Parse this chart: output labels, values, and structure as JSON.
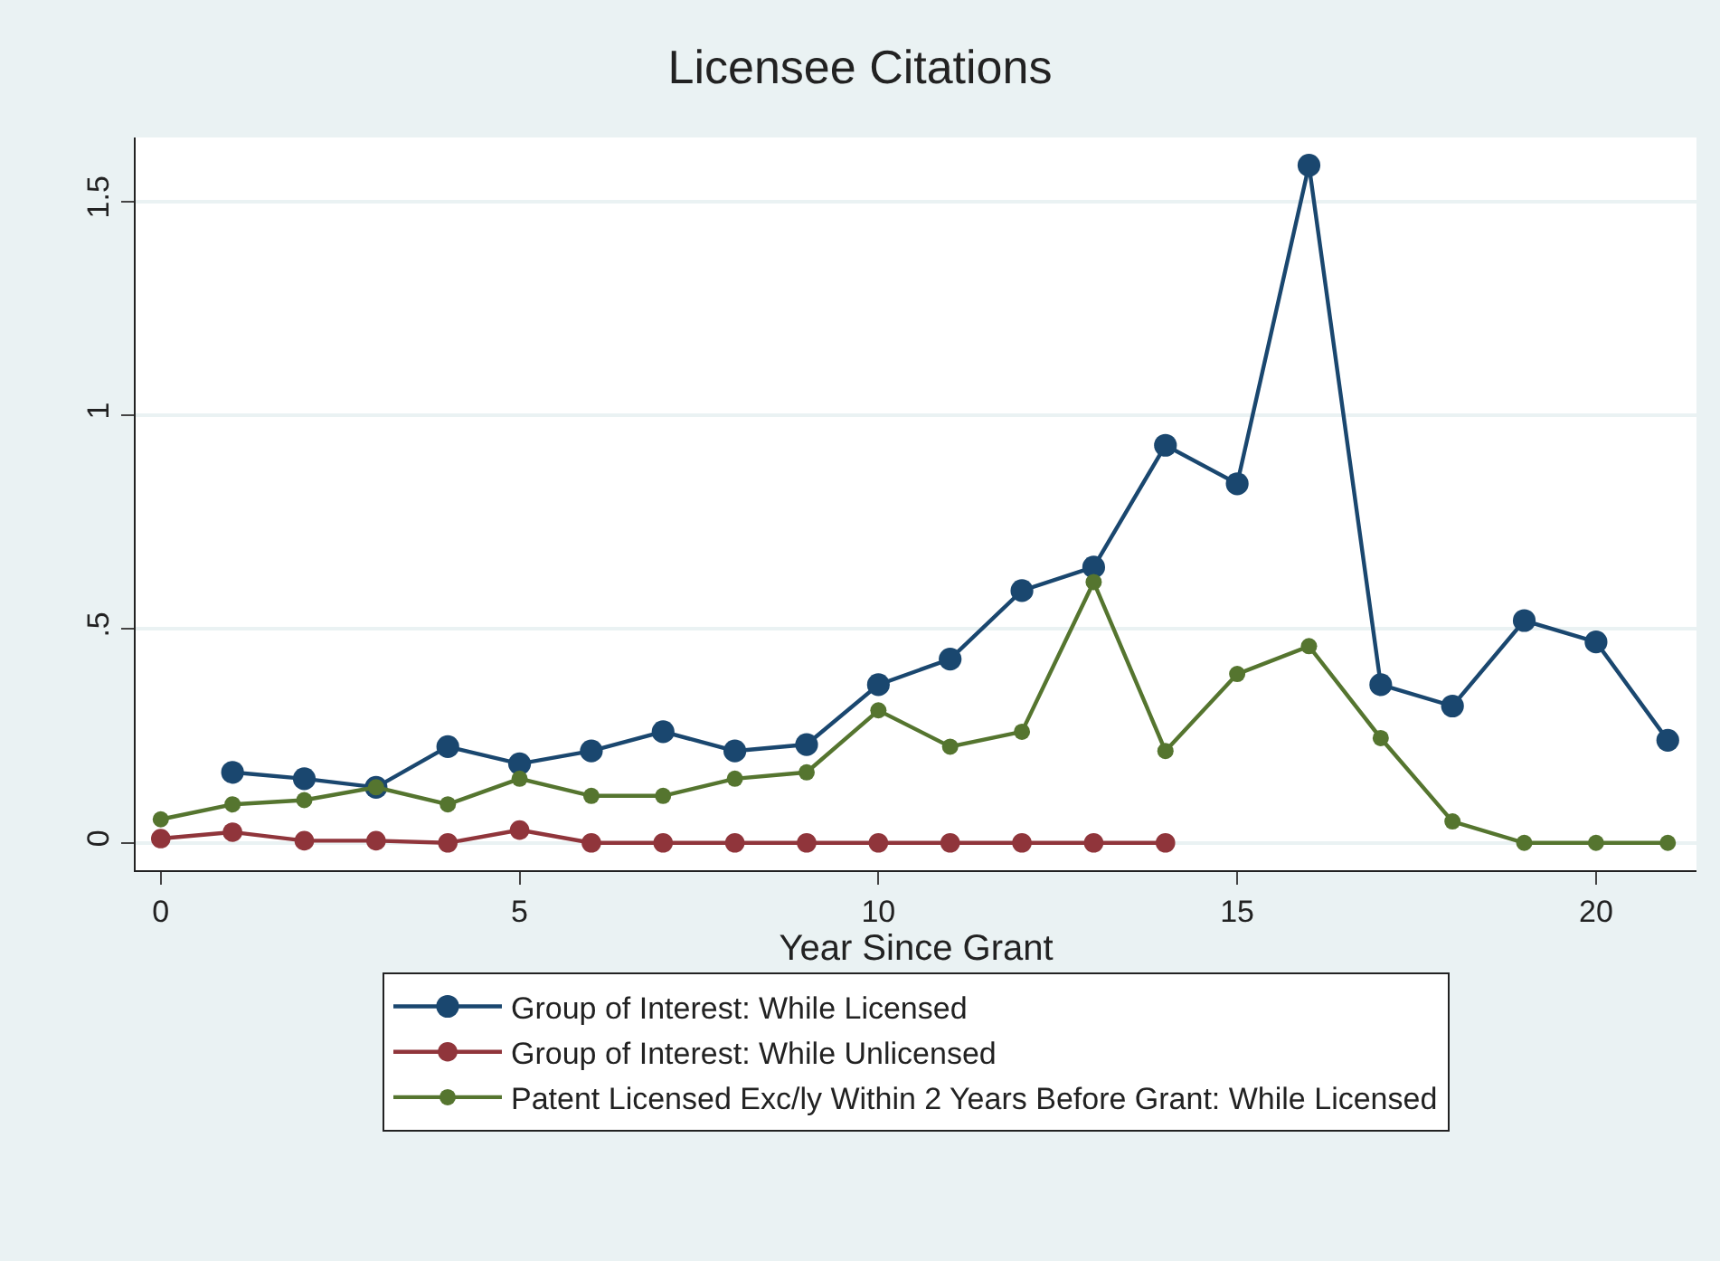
{
  "chart_data": {
    "type": "line",
    "title": "Licensee Citations",
    "xlabel": "Year Since Grant",
    "series": [
      {
        "name": "Group of Interest: While Licensed",
        "color": "#1a476f",
        "x": [
          1,
          2,
          3,
          4,
          5,
          6,
          7,
          8,
          9,
          10,
          11,
          12,
          13,
          14,
          15,
          16,
          17,
          18,
          19,
          20,
          21
        ],
        "values": [
          0.165,
          0.15,
          0.13,
          0.225,
          0.185,
          0.215,
          0.26,
          0.215,
          0.23,
          0.37,
          0.43,
          0.59,
          0.645,
          0.93,
          0.84,
          1.585,
          0.37,
          0.32,
          0.52,
          0.47,
          0.24
        ]
      },
      {
        "name": "Group of Interest: While Unlicensed",
        "color": "#90353b",
        "x": [
          0,
          1,
          2,
          3,
          4,
          5,
          6,
          7,
          8,
          9,
          10,
          11,
          12,
          13,
          14
        ],
        "values": [
          0.01,
          0.025,
          0.005,
          0.005,
          0,
          0.03,
          0,
          0,
          0,
          0,
          0,
          0,
          0,
          0,
          0
        ]
      },
      {
        "name": "Patent Licensed Exc/ly Within 2 Years Before Grant: While Licensed",
        "color": "#55752f",
        "x": [
          0,
          1,
          2,
          3,
          4,
          5,
          6,
          7,
          8,
          9,
          10,
          11,
          12,
          13,
          14,
          15,
          16,
          17,
          18,
          19,
          20,
          21
        ],
        "values": [
          0.055,
          0.09,
          0.1,
          0.13,
          0.09,
          0.15,
          0.11,
          0.11,
          0.15,
          0.165,
          0.31,
          0.225,
          0.26,
          0.61,
          0.215,
          0.395,
          0.46,
          0.245,
          0.05,
          0,
          0,
          0
        ]
      }
    ],
    "xlim": [
      -0.35,
      21.4
    ],
    "xticks": [
      0,
      5,
      10,
      15,
      20
    ],
    "ylim": [
      -0.064,
      1.65
    ],
    "yticks": [
      0,
      {
        "value": 0.5,
        "label": ".5"
      },
      1,
      1.5
    ],
    "grid": "y",
    "legend": "bottom",
    "marker": "circle",
    "line_style": "solid"
  }
}
